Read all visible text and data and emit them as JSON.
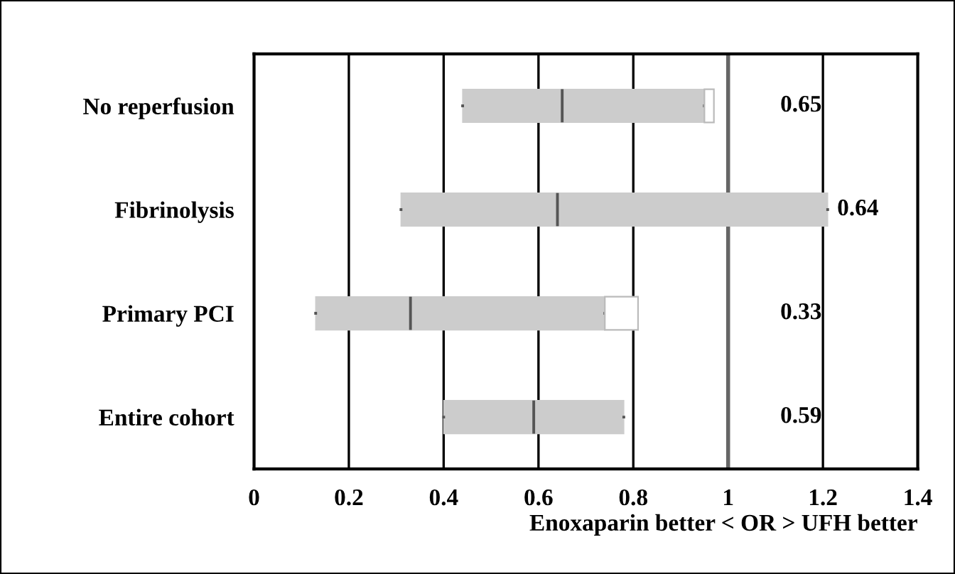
{
  "chart_data": {
    "type": "bar",
    "orientation": "horizontal",
    "categories": [
      "No reperfusion",
      "Fibrinolysis",
      "Primary PCI",
      "Entire cohort"
    ],
    "series": [
      {
        "type": "box",
        "color": "#cccccc",
        "boxes": [
          {
            "low": 0.44,
            "q1": 0.44,
            "median": 0.65,
            "q3": 0.95,
            "high": 0.95
          },
          {
            "low": 0.31,
            "q1": 0.31,
            "median": 0.64,
            "q3": 1.21,
            "high": 1.21
          },
          {
            "low": 0.13,
            "q1": 0.13,
            "median": 0.33,
            "q3": 0.74,
            "high": 0.74
          },
          {
            "low": 0.4,
            "q1": 0.4,
            "median": 0.59,
            "q3": 0.78,
            "high": 0.78
          }
        ]
      },
      {
        "color": "#ffffff",
        "base": [
          0.95,
          null,
          0.74,
          null
        ],
        "values": [
          0.02,
          null,
          0.07,
          null
        ]
      }
    ],
    "annotations": [
      "0.65",
      "0.64",
      "0.33",
      "0.59"
    ],
    "xlabel": "Enoxaparin better < OR > UFH better",
    "xlim": [
      0,
      1.4
    ],
    "xticks": [
      0,
      0.2,
      0.4,
      0.6,
      0.8,
      1,
      1.2,
      1.4
    ],
    "grid": "x",
    "ref_lines": [
      {
        "axis": "x",
        "value": 1,
        "color": "#666666"
      }
    ]
  }
}
